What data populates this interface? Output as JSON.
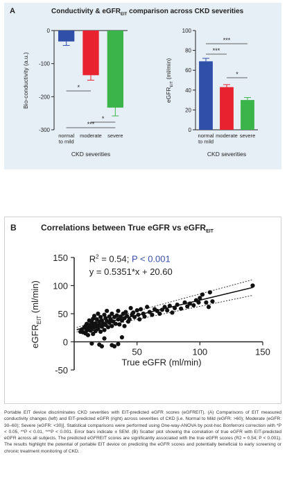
{
  "panelA": {
    "letter": "A",
    "title_main": "Conductivity & eGFR",
    "title_sub": "EIT",
    "title_rest": " comparison across CKD severities"
  },
  "panelB": {
    "letter": "B",
    "title_main": "Correlations between True eGFR vs eGFR",
    "title_sub": "EIT"
  },
  "colors": {
    "normal": "#2f4fa8",
    "moderate": "#e8222f",
    "severe": "#3bb54a",
    "panelA_bg": "#e6eef6"
  },
  "chart_data": [
    {
      "type": "bar",
      "categories": [
        "normal\nto mild",
        "moderate",
        "severe"
      ],
      "values": [
        -33,
        -135,
        -233
      ],
      "errors": [
        12,
        15,
        25
      ],
      "ylabel": "Bio-conductivity (a.u.)",
      "xlabel": "CKD severities",
      "ylim": [
        -300,
        0
      ],
      "yticks": [
        "0",
        "-100",
        "-200",
        "-300"
      ],
      "significance": [
        {
          "pair": [
            "normal to mild",
            "moderate"
          ],
          "label": "*"
        },
        {
          "pair": [
            "moderate",
            "severe"
          ],
          "label": "*"
        },
        {
          "pair": [
            "normal to mild",
            "severe"
          ],
          "label": "***"
        }
      ]
    },
    {
      "type": "bar",
      "categories": [
        "normal\nto mild",
        "moderate",
        "severe"
      ],
      "values": [
        69,
        43,
        30
      ],
      "errors": [
        3,
        2.5,
        2.5
      ],
      "ylabel": "eGFR",
      "ylabel_sub": "EIT",
      "ylabel_unit": " (ml/min)",
      "xlabel": "CKD severities",
      "ylim": [
        0,
        100
      ],
      "yticks": [
        "0",
        "20",
        "40",
        "60",
        "80",
        "100"
      ],
      "significance": [
        {
          "pair": [
            "normal to mild",
            "moderate"
          ],
          "label": "***"
        },
        {
          "pair": [
            "moderate",
            "severe"
          ],
          "label": "*"
        },
        {
          "pair": [
            "normal to mild",
            "severe"
          ],
          "label": "***"
        }
      ]
    },
    {
      "type": "scatter",
      "xlabel": "True eGFR (ml/min)",
      "ylabel": "eGFR",
      "ylabel_sub": "EIT",
      "ylabel_unit": " (ml/min)",
      "xlim": [
        0,
        150
      ],
      "ylim": [
        -50,
        150
      ],
      "xticks": [
        "50",
        "100",
        "150"
      ],
      "yticks": [
        "150",
        "100",
        "50",
        "0",
        "-50"
      ],
      "r2_text": "R",
      "r2_sup": "2",
      "r2_value": " = 0.54;",
      "p_text": "P < 0.001",
      "equation": "y = 0.5351*x + 20.60",
      "fit": {
        "slope": 0.5351,
        "intercept": 20.6
      },
      "points": [
        [
          5,
          18
        ],
        [
          6,
          22
        ],
        [
          7,
          17
        ],
        [
          8,
          25
        ],
        [
          9,
          28
        ],
        [
          9,
          15
        ],
        [
          10,
          20
        ],
        [
          10,
          32
        ],
        [
          11,
          24
        ],
        [
          11,
          12
        ],
        [
          12,
          30
        ],
        [
          12,
          38
        ],
        [
          13,
          27
        ],
        [
          13,
          20
        ],
        [
          14,
          35
        ],
        [
          14,
          22
        ],
        [
          15,
          41
        ],
        [
          15,
          30
        ],
        [
          15,
          14
        ],
        [
          16,
          26
        ],
        [
          16,
          46
        ],
        [
          17,
          33
        ],
        [
          17,
          19
        ],
        [
          18,
          40
        ],
        [
          18,
          28
        ],
        [
          19,
          23
        ],
        [
          19,
          50
        ],
        [
          20,
          36
        ],
        [
          20,
          30
        ],
        [
          21,
          44
        ],
        [
          21,
          18
        ],
        [
          22,
          38
        ],
        [
          22,
          27
        ],
        [
          23,
          33
        ],
        [
          24,
          48
        ],
        [
          24,
          21
        ],
        [
          25,
          42
        ],
        [
          25,
          30
        ],
        [
          26,
          37
        ],
        [
          26,
          55
        ],
        [
          27,
          26
        ],
        [
          28,
          45
        ],
        [
          28,
          34
        ],
        [
          29,
          40
        ],
        [
          30,
          50
        ],
        [
          30,
          28
        ],
        [
          31,
          36
        ],
        [
          32,
          44
        ],
        [
          33,
          32
        ],
        [
          34,
          47
        ],
        [
          35,
          40
        ],
        [
          35,
          55
        ],
        [
          36,
          31
        ],
        [
          37,
          45
        ],
        [
          38,
          38
        ],
        [
          39,
          50
        ],
        [
          40,
          42
        ],
        [
          40,
          28
        ],
        [
          41,
          53
        ],
        [
          42,
          46
        ],
        [
          43,
          36
        ],
        [
          44,
          40
        ],
        [
          45,
          60
        ],
        [
          46,
          48
        ],
        [
          47,
          52
        ],
        [
          48,
          44
        ],
        [
          50,
          56
        ],
        [
          51,
          48
        ],
        [
          52,
          40
        ],
        [
          53,
          58
        ],
        [
          55,
          50
        ],
        [
          56,
          45
        ],
        [
          58,
          62
        ],
        [
          60,
          53
        ],
        [
          62,
          48
        ],
        [
          64,
          58
        ],
        [
          66,
          55
        ],
        [
          68,
          50
        ],
        [
          70,
          57
        ],
        [
          72,
          62
        ],
        [
          74,
          56
        ],
        [
          76,
          64
        ],
        [
          78,
          52
        ],
        [
          80,
          60
        ],
        [
          82,
          66
        ],
        [
          85,
          59
        ],
        [
          88,
          70
        ],
        [
          90,
          63
        ],
        [
          92,
          68
        ],
        [
          95,
          65
        ],
        [
          97,
          74
        ],
        [
          99,
          70
        ],
        [
          100,
          78
        ],
        [
          102,
          84
        ],
        [
          105,
          70
        ],
        [
          107,
          62
        ],
        [
          108,
          88
        ],
        [
          110,
          72
        ],
        [
          20,
          -5
        ],
        [
          22,
          -8
        ],
        [
          30,
          -6
        ],
        [
          32,
          -8
        ],
        [
          14,
          -3
        ],
        [
          35,
          -4
        ],
        [
          38,
          8
        ],
        [
          24,
          6
        ],
        [
          142,
          100
        ]
      ]
    }
  ],
  "caption": "Portable EIT device discriminates CKD severities with EIT-predicted eGFR scores (eGFREIT). (A) Comparisons of EIT measured conductivity changes (left) and EIT-predicted eGFR (right) across severities of CKD [i.e. Normal to Mild (eGFR: >60);  Moderate (eGFR: 30–60); Severe (eGFR: <30)]. Statistical comparisons were performed using One-way-ANOVA by post-hoc Bonferroni correction with *P < 0.05, **P < 0.01, ***P < 0.001. Error bars indicate ± SEM. (B) Scatter plot showing the correlation of true eGFR with EIT-predicted eGFR across all subjects. The predicted eGFREIT scores are significantly associated with the true eGFR scores (R2 = 0.54; P < 0.001). The results highlight the potential of portable EIT device on predicting the eGFR scores and potentially beneficial to early screening or chronic treatment monitoring of CKD."
}
